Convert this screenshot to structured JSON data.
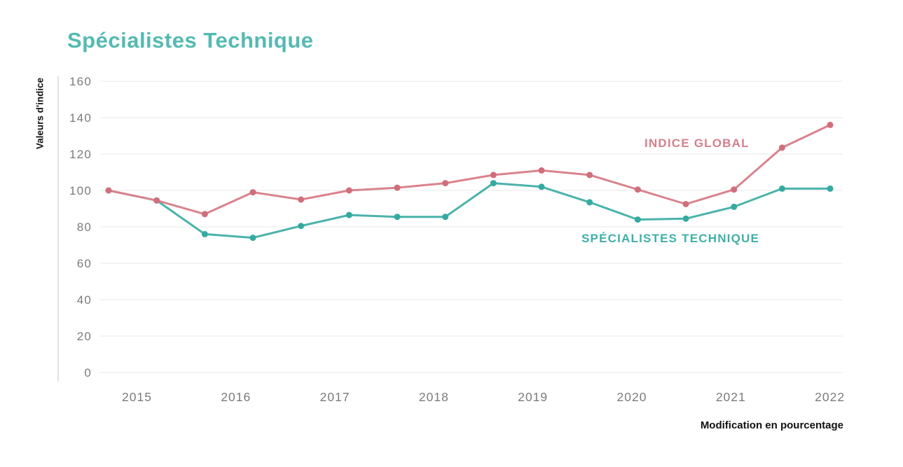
{
  "page": {
    "background": "#ffffff"
  },
  "colors": {
    "title_teal": "#54bab1",
    "global_line": "#d9838d",
    "global_dot": "#d06e7c",
    "technique_line": "#4ab3aa",
    "technique_dot": "#35aaa1",
    "global_label_text": "#d5808c",
    "technique_label_text": "#3fb0a7",
    "tick_text": "#7b7b7b",
    "gridline": "#e8e8e8",
    "axis_line": "#d9d9d9",
    "dark_text": "#111111"
  },
  "chart_data": {
    "type": "line",
    "title": "Spécialistes Technique",
    "ylabel": "Valeurs d'indice",
    "xlabel": "Modification en pourcentage",
    "x_tick_labels": [
      "2015",
      "2016",
      "2017",
      "2018",
      "2019",
      "2020",
      "2021",
      "2022"
    ],
    "yticks": [
      160,
      140,
      120,
      100,
      80,
      60,
      40,
      20,
      0
    ],
    "ylim": [
      0,
      160
    ],
    "x_sampling": "16 points, 2 per year (semi-annual), spanning late 2014 through 2022",
    "grid": "horizontal gridlines only, light gray",
    "legend_position": "inline text labels near each line",
    "series": [
      {
        "name": "INDICE GLOBAL",
        "line_color": "#d9838d",
        "dot_color": "#d06e7c",
        "values": [
          100,
          94.5,
          87,
          99,
          95,
          100,
          101.5,
          104,
          108.5,
          111,
          108.5,
          100.5,
          92.5,
          100.5,
          123.5,
          136
        ]
      },
      {
        "name": "SPÉCIALISTES TECHNIQUE",
        "line_color": "#4ab3aa",
        "dot_color": "#35aaa1",
        "values": [
          100,
          94.5,
          76,
          74,
          80.5,
          86.5,
          85.5,
          85.5,
          104,
          102,
          93.5,
          84,
          84.5,
          91,
          101,
          101
        ]
      }
    ]
  }
}
